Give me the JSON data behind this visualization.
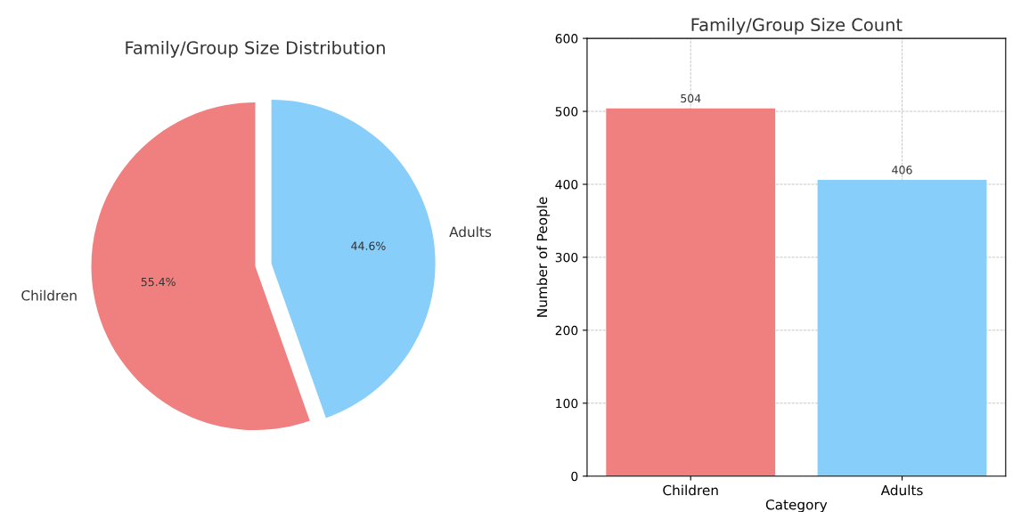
{
  "chart_data": [
    {
      "type": "pie",
      "title": "Family/Group Size Distribution",
      "categories": [
        "Children",
        "Adults"
      ],
      "values": [
        55.4,
        44.6
      ],
      "colors": [
        "#f08080",
        "#87cefa"
      ],
      "value_labels": [
        "55.4%",
        "44.6%"
      ]
    },
    {
      "type": "bar",
      "title": "Family/Group Size Count",
      "xlabel": "Category",
      "ylabel": "Number of People",
      "categories": [
        "Children",
        "Adults"
      ],
      "values": [
        504,
        406
      ],
      "colors": [
        "#f08080",
        "#87cefa"
      ],
      "ylim": [
        0,
        600
      ],
      "yticks": [
        0,
        100,
        200,
        300,
        400,
        500,
        600
      ],
      "grid": true,
      "data_labels": true
    }
  ]
}
